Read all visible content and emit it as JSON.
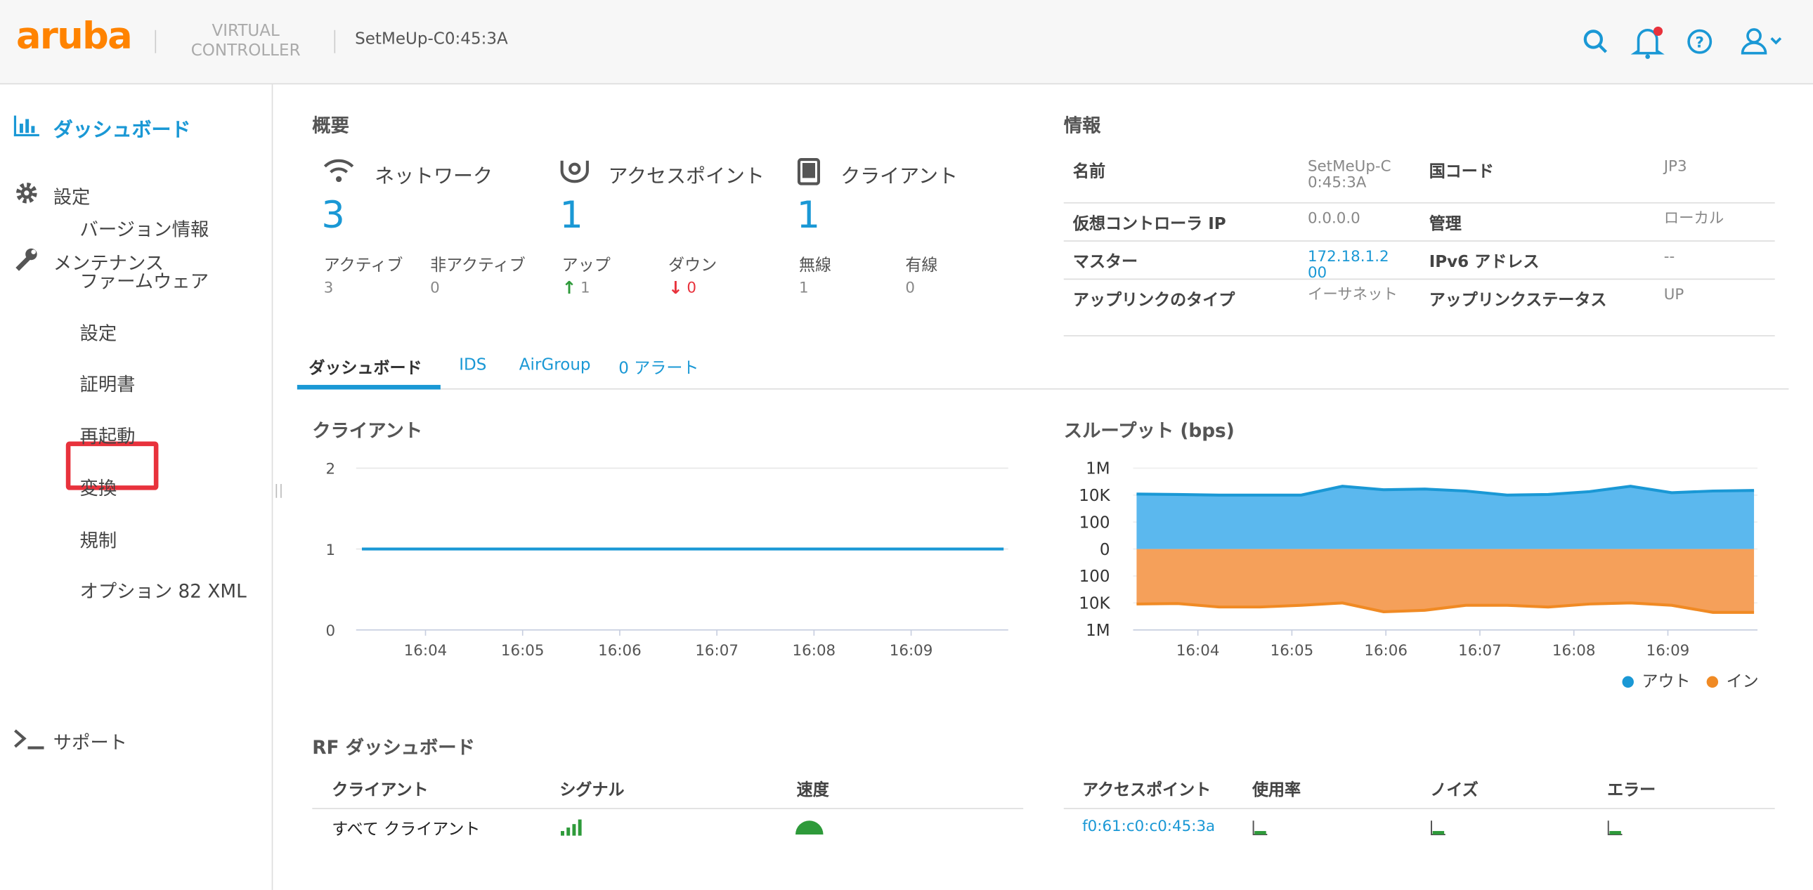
{
  "header": {
    "logo": "aruba",
    "product_line1": "VIRTUAL",
    "product_line2": "CONTROLLER",
    "controller": "SetMeUp-C0:45:3A"
  },
  "sidebar": {
    "dashboard": "ダッシュボード",
    "settings": "設定",
    "maintenance": "メンテナンス",
    "maintenance_items": [
      "バージョン情報",
      "ファームウェア",
      "設定",
      "証明書",
      "再起動",
      "変換",
      "規制",
      "オプション 82 XML"
    ],
    "support": "サポート"
  },
  "overview": {
    "title": "概要",
    "cards": [
      {
        "label": "ネットワーク",
        "value": 3,
        "stats": [
          {
            "label": "アクティブ",
            "value": 3
          },
          {
            "label": "非アクティブ",
            "value": 0
          }
        ]
      },
      {
        "label": "アクセスポイント",
        "value": 1,
        "stats": [
          {
            "label": "アップ",
            "value": 1
          },
          {
            "label": "ダウン",
            "value": 0
          }
        ]
      },
      {
        "label": "クライアント",
        "value": 1,
        "stats": [
          {
            "label": "無線",
            "value": 1
          },
          {
            "label": "有線",
            "value": 0
          }
        ]
      }
    ]
  },
  "info": {
    "title": "情報",
    "rows": [
      [
        "名前",
        "SetMeUp-C0:45:3A",
        "国コード",
        "JP3"
      ],
      [
        "仮想コントローラ IP",
        "0.0.0.0",
        "管理",
        "ローカル"
      ],
      [
        "マスター",
        "172.18.1.200",
        "IPv6 アドレス",
        "--"
      ],
      [
        "アップリンクのタイプ",
        "イーサネット",
        "アップリンクステータス",
        "UP"
      ]
    ]
  },
  "tabs": [
    "ダッシュボード",
    "IDS",
    "AirGroup",
    "0 アラート"
  ],
  "clients_chart": {
    "type": "line",
    "title": "クライアント",
    "ylim": [
      0,
      2
    ],
    "yticks": [
      0,
      1,
      2
    ],
    "xticks": [
      "16:04",
      "16:05",
      "16:06",
      "16:07",
      "16:08",
      "16:09"
    ],
    "series": [
      {
        "color": "#1a98d5",
        "values": [
          1,
          1,
          1,
          1,
          1,
          1,
          1,
          1
        ]
      }
    ]
  },
  "throughput_chart": {
    "type": "area",
    "title": "スループット (bps)",
    "log_scale": true,
    "ylim": [
      -1000000,
      1000000
    ],
    "yticks": [
      {
        "value": 1000000,
        "label": "1M"
      },
      {
        "value": 10000,
        "label": "10K"
      },
      100,
      0,
      {
        "value": -100,
        "label": "100"
      },
      {
        "value": -10000,
        "label": "10K"
      },
      {
        "value": -1000000,
        "label": "1M"
      }
    ],
    "xticks": [
      "16:04",
      "16:05",
      "16:06",
      "16:07",
      "16:08",
      "16:09"
    ],
    "series": [
      {
        "name": "アウト",
        "color": "#1a98d5",
        "fill": "#5bb8ee",
        "values": [
          12000,
          11000,
          10000,
          10000,
          10000,
          45000,
          25000,
          28000,
          20000,
          10000,
          11000,
          18000,
          45000,
          15000,
          20000,
          22000
        ]
      },
      {
        "name": "イン",
        "color": "#f08a24",
        "fill": "#f5a05a",
        "values": [
          -12000,
          -11000,
          -20000,
          -20000,
          -15000,
          -10000,
          -45000,
          -35000,
          -15000,
          -15000,
          -20000,
          -12000,
          -10000,
          -15000,
          -50000,
          -50000
        ]
      }
    ]
  },
  "rf": {
    "title": "RF ダッシュボード",
    "client_headers": [
      "クライアント",
      "シグナル",
      "速度"
    ],
    "client_row": "すべて クライアント",
    "ap_headers": [
      "アクセスポイント",
      "使用率",
      "ノイズ",
      "エラー"
    ],
    "ap_row": "f0:61:c0:c0:45:3a"
  }
}
